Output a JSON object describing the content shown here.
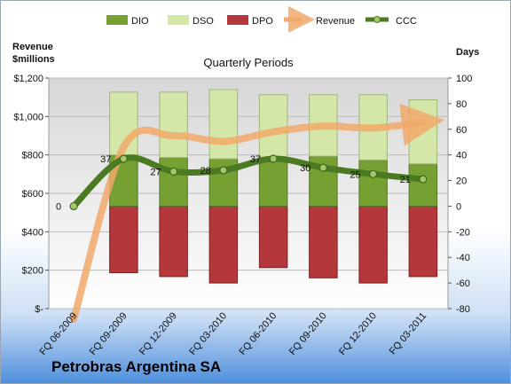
{
  "chart_data": {
    "type": "bar",
    "title": "Quarterly Periods",
    "company": "Petrobras Argentina SA",
    "categories": [
      "FQ 06-2009",
      "FQ 09-2009",
      "FQ 12-2009",
      "FQ 03-2010",
      "FQ 06-2010",
      "FQ 09-2010",
      "FQ 12-2010",
      "FQ 03-2011"
    ],
    "left_axis": {
      "label_line1": "Revenue",
      "label_line2": "$millions",
      "range": [
        0,
        1200
      ],
      "ticks": [
        0,
        200,
        400,
        600,
        800,
        1000,
        1200
      ],
      "tick_labels": [
        "$-",
        "$200",
        "$400",
        "$600",
        "$800",
        "$1,000",
        "$1,200"
      ]
    },
    "right_axis": {
      "label": "Days",
      "range": [
        -80,
        100
      ],
      "ticks": [
        -80,
        -60,
        -40,
        -20,
        0,
        20,
        40,
        60,
        80,
        100
      ],
      "tick_labels": [
        "-80",
        "-60",
        "-40",
        "-20",
        "0",
        "20",
        "40",
        "60",
        "80",
        "100"
      ]
    },
    "legend": {
      "position": "top",
      "items": [
        "DIO",
        "DSO",
        "DPO",
        "Revenue",
        "CCC"
      ]
    },
    "colors": {
      "DIO": "#77a033",
      "DSO": "#d4e6a8",
      "DPO": "#b3373b",
      "Revenue": "#f1a96a",
      "CCC": "#4a7a22",
      "plot_bg_top": "#d7d7d7",
      "plot_bg_bottom": "#ffffff",
      "page_bg_top": "#ffffff",
      "page_bg_bottom": "#4d8fdd"
    },
    "series": [
      {
        "name": "DPO",
        "axis": "right",
        "values": [
          null,
          -52,
          -55,
          -60,
          -48,
          -56,
          -60,
          -55
        ]
      },
      {
        "name": "DIO",
        "axis": "right",
        "values": [
          null,
          40,
          38,
          37,
          38,
          39,
          36,
          33
        ]
      },
      {
        "name": "DSO",
        "axis": "right",
        "values": [
          null,
          49,
          51,
          54,
          49,
          48,
          51,
          50
        ]
      },
      {
        "name": "Revenue",
        "axis": "left",
        "values": [
          -60,
          840,
          900,
          870,
          920,
          950,
          940,
          970
        ]
      },
      {
        "name": "CCC",
        "axis": "right",
        "values": [
          0,
          37,
          27,
          28,
          37,
          30,
          25,
          21
        ]
      }
    ],
    "ccc_labels": [
      "0",
      "37",
      "27",
      "28",
      "37",
      "30",
      "25",
      "21"
    ]
  }
}
